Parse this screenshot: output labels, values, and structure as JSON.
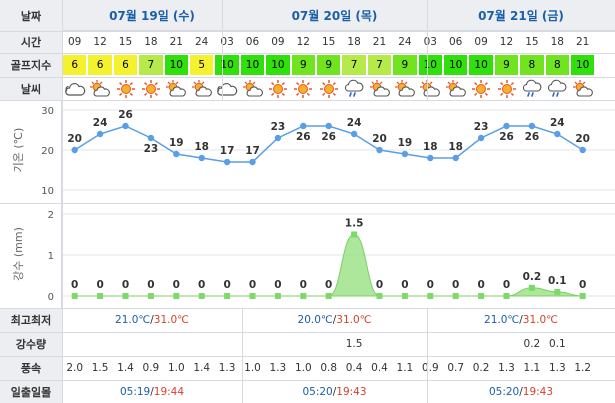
{
  "labels": {
    "date": "날짜",
    "time": "시간",
    "golf_index": "골프지수",
    "weather": "날씨",
    "temperature_axis": "기온 (℃)",
    "precip_axis": "강수 (mm)",
    "min_max": "최고최저",
    "precip_amount": "강수량",
    "wind_speed": "풍속",
    "sunrise_sunset": "일출일몰"
  },
  "days": [
    {
      "title": "07월 19일 (수)",
      "min": "21.0℃",
      "slash": "/",
      "max": "31.0℃",
      "sunrise": "05:19",
      "sunset": "19:44"
    },
    {
      "title": "07월 20일 (목)",
      "min": "20.0℃",
      "slash": "/",
      "max": "31.0℃",
      "sunrise": "05:20",
      "sunset": "19:43"
    },
    {
      "title": "07월 21일 (금)",
      "min": "21.0℃",
      "slash": "/",
      "max": "31.0℃",
      "sunrise": "05:20",
      "sunset": "19:43"
    }
  ],
  "hours": [
    "09",
    "12",
    "15",
    "18",
    "21",
    "24",
    "03",
    "06",
    "09",
    "12",
    "15",
    "18",
    "21",
    "24",
    "03",
    "06",
    "09",
    "12",
    "15",
    "18",
    "21"
  ],
  "golf": [
    "6",
    "6",
    "6",
    "7",
    "10",
    "5",
    "10",
    "10",
    "10",
    "9",
    "9",
    "7",
    "7",
    "9",
    "10",
    "10",
    "10",
    "9",
    "8",
    "8",
    "10"
  ],
  "weather_icons": [
    "cloudy-icon",
    "partly-cloudy-icon",
    "sunny-icon",
    "sunny-icon",
    "partly-cloudy-icon",
    "partly-cloudy-icon",
    "cloudy-icon",
    "partly-cloudy-icon",
    "sunny-icon",
    "sunny-icon",
    "sunny-icon",
    "rain-icon",
    "partly-cloudy-icon",
    "partly-cloudy-icon",
    "partly-cloudy-icon",
    "partly-cloudy-icon",
    "sunny-icon",
    "sunny-icon",
    "rain-icon",
    "rain-icon",
    "partly-cloudy-icon"
  ],
  "precip_labels": [
    "",
    "",
    "",
    "",
    "",
    "",
    "",
    "",
    "",
    "",
    "",
    "1.5",
    "",
    "",
    "",
    "",
    "",
    "",
    "0.2",
    "0.1",
    ""
  ],
  "wind": [
    "2.0",
    "1.5",
    "1.4",
    "0.9",
    "1.0",
    "1.4",
    "1.3",
    "1.0",
    "1.3",
    "1.0",
    "0.8",
    "0.4",
    "0.4",
    "1.1",
    "0.9",
    "0.7",
    "0.2",
    "1.3",
    "1.1",
    "1.3",
    "1.2"
  ],
  "colors": {
    "golf_yellow": "#f4f22e",
    "golf_light_green": "#a8e83a",
    "golf_green": "#2fe00a",
    "line_blue": "#5a9ee6",
    "area_green": "#9de38a",
    "point_green": "#7ed86a"
  },
  "chart_data": [
    {
      "type": "line",
      "name": "temperature",
      "x": [
        "09",
        "12",
        "15",
        "18",
        "21",
        "24",
        "03",
        "06",
        "09",
        "12",
        "15",
        "18",
        "21",
        "24",
        "03",
        "06",
        "09",
        "12",
        "15",
        "18",
        "21"
      ],
      "values": [
        20,
        24,
        26,
        23,
        19,
        18,
        17,
        17,
        23,
        26,
        26,
        24,
        20,
        19,
        18,
        18,
        23,
        26,
        26,
        24,
        20
      ],
      "ylim": [
        10,
        30
      ],
      "yticks": [
        10,
        20,
        30
      ],
      "ylabel": "기온 (℃)",
      "grid": true
    },
    {
      "type": "area",
      "name": "precipitation",
      "x": [
        "09",
        "12",
        "15",
        "18",
        "21",
        "24",
        "03",
        "06",
        "09",
        "12",
        "15",
        "18",
        "21",
        "24",
        "03",
        "06",
        "09",
        "12",
        "15",
        "18",
        "21"
      ],
      "values": [
        0,
        0,
        0,
        0,
        0,
        0,
        0,
        0,
        0,
        0,
        0,
        1.5,
        0,
        0,
        0,
        0,
        0,
        0,
        0.2,
        0.1,
        0
      ],
      "value_labels": [
        "0",
        "0",
        "0",
        "0",
        "0",
        "0",
        "0",
        "0",
        "0",
        "0",
        "0",
        "1.5",
        "0",
        "0",
        "0",
        "0",
        "0",
        "0",
        "0.2",
        "0.1",
        "0"
      ],
      "ylim": [
        0,
        2
      ],
      "yticks": [
        0,
        1,
        2
      ],
      "ylabel": "강수 (mm)",
      "grid": true
    }
  ]
}
